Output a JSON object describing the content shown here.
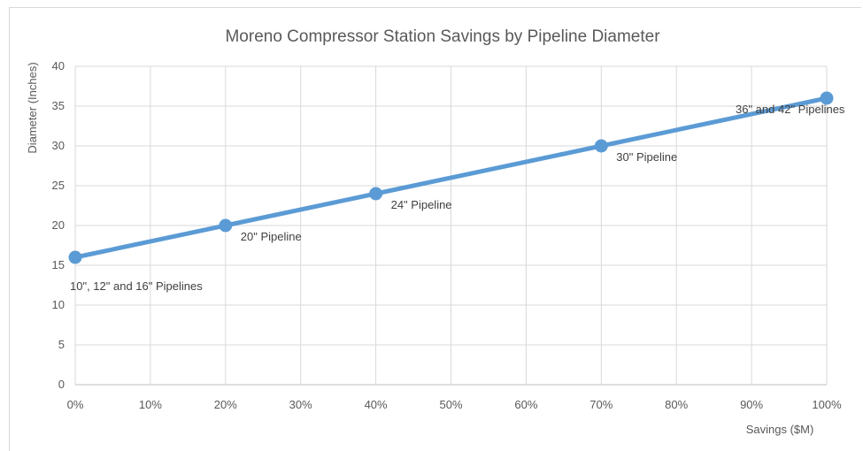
{
  "chart_data": {
    "type": "line",
    "title": "Moreno Compressor  Station Savings by Pipeline Diameter",
    "xlabel": "Savings ($M)",
    "ylabel": "Diameter (Inches)",
    "xlim": [
      0,
      100
    ],
    "ylim": [
      0,
      40
    ],
    "x_ticks": [
      0,
      10,
      20,
      30,
      40,
      50,
      60,
      70,
      80,
      90,
      100
    ],
    "x_tick_labels": [
      "0%",
      "10%",
      "20%",
      "30%",
      "40%",
      "50%",
      "60%",
      "70%",
      "80%",
      "90%",
      "100%"
    ],
    "y_ticks": [
      0,
      5,
      10,
      15,
      20,
      25,
      30,
      35,
      40
    ],
    "y_tick_labels": [
      "0",
      "5",
      "10",
      "15",
      "20",
      "25",
      "30",
      "35",
      "40"
    ],
    "grid": true,
    "legend": "none",
    "series": [
      {
        "color": "#5b9bd5",
        "points": [
          {
            "x": 0,
            "y": 16,
            "label": "10\", 12\" and 16\" Pipelines"
          },
          {
            "x": 20,
            "y": 20,
            "label": "20\" Pipeline"
          },
          {
            "x": 40,
            "y": 24,
            "label": "24\" Pipeline"
          },
          {
            "x": 70,
            "y": 30,
            "label": "30\" Pipeline"
          },
          {
            "x": 100,
            "y": 36,
            "label": "36\" and 42\" Pipelines"
          }
        ]
      }
    ]
  }
}
